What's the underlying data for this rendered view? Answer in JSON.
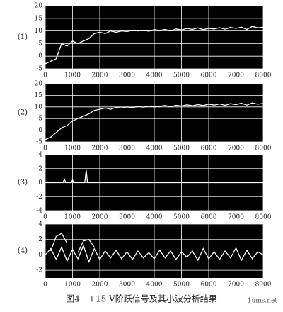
{
  "chart_data": [
    {
      "type": "line",
      "title": "(1)",
      "background": "#000000",
      "grid": true,
      "x": [
        0,
        200,
        400,
        600,
        800,
        1000,
        1200,
        1400,
        1600,
        1800,
        2000,
        2200,
        2400,
        2600,
        2800,
        3000,
        3200,
        3400,
        3600,
        3800,
        4000,
        4200,
        4400,
        4600,
        4800,
        5000,
        5200,
        5400,
        5600,
        5800,
        6000,
        6200,
        6400,
        6600,
        6800,
        7000,
        7200,
        7400,
        7600,
        7800,
        8000
      ],
      "series": [
        {
          "color": "#ffffff",
          "values": [
            -3,
            -2,
            -1,
            5,
            4,
            6,
            5,
            6,
            7,
            9,
            9.5,
            9,
            10,
            9.5,
            10,
            9.8,
            10.2,
            10,
            10.3,
            9.9,
            10.5,
            10.2,
            10.6,
            10,
            10.8,
            10.4,
            11,
            10.6,
            11.2,
            10.5,
            11,
            10.8,
            11.3,
            10.7,
            11.4,
            11,
            11.5,
            10.6,
            11.8,
            11.2,
            11.5
          ]
        }
      ],
      "xlim": [
        0,
        8000
      ],
      "xticks": [
        0,
        1000,
        2000,
        3000,
        4000,
        5000,
        6000,
        7000,
        8000
      ],
      "ylim": [
        -5,
        20
      ],
      "yticks": [
        -5,
        0,
        5,
        10,
        15,
        20
      ]
    },
    {
      "type": "line",
      "title": "(2)",
      "background": "#000000",
      "grid": true,
      "x": [
        0,
        200,
        400,
        600,
        800,
        1000,
        1200,
        1400,
        1600,
        1800,
        2000,
        2200,
        2400,
        2600,
        2800,
        3000,
        3200,
        3400,
        3600,
        3800,
        4000,
        4200,
        4400,
        4600,
        4800,
        5000,
        5200,
        5400,
        5600,
        5800,
        6000,
        6200,
        6400,
        6600,
        6800,
        7000,
        7200,
        7400,
        7600,
        7800,
        8000
      ],
      "series": [
        {
          "color": "#ffffff",
          "values": [
            -4,
            -3,
            -1,
            1,
            2,
            4,
            5,
            6,
            7,
            8.5,
            9,
            9.5,
            9,
            9.8,
            9.5,
            10,
            9.7,
            10.2,
            9.9,
            10.4,
            10,
            10.3,
            10.6,
            10.1,
            10.7,
            10.4,
            10.9,
            10.5,
            11,
            10.6,
            11.2,
            10.8,
            11.3,
            10.7,
            11.4,
            11,
            11.6,
            10.8,
            11.7,
            11.2,
            11.5
          ]
        }
      ],
      "xlim": [
        0,
        8000
      ],
      "xticks": [
        0,
        1000,
        2000,
        3000,
        4000,
        5000,
        6000,
        7000,
        8000
      ],
      "ylim": [
        -5,
        20
      ],
      "yticks": [
        -5,
        0,
        5,
        10,
        15,
        20
      ]
    },
    {
      "type": "line",
      "title": "(3)",
      "background": "#000000",
      "grid": true,
      "x": [
        0,
        650,
        700,
        750,
        950,
        1000,
        1050,
        1450,
        1500,
        1550,
        8000
      ],
      "series": [
        {
          "color": "#ffffff",
          "values": [
            0,
            0,
            0.5,
            0,
            0,
            0.4,
            0,
            0,
            1.8,
            0,
            0
          ]
        }
      ],
      "xlim": [
        0,
        8000
      ],
      "xticks": [
        0,
        1000,
        2000,
        3000,
        4000,
        5000,
        6000,
        7000,
        8000
      ],
      "ylim": [
        -4,
        4
      ],
      "yticks": [
        -4,
        -2,
        0,
        2,
        4
      ]
    },
    {
      "type": "line",
      "title": "(4)",
      "background": "#000000",
      "grid": true,
      "x": [
        0,
        200,
        400,
        600,
        800,
        1000,
        1200,
        1400,
        1600,
        1800,
        2000,
        2200,
        2400,
        2600,
        2800,
        3000,
        3200,
        3400,
        3600,
        3800,
        4000,
        4200,
        4400,
        4600,
        4800,
        5000,
        5200,
        5400,
        5600,
        5800,
        6000,
        6200,
        6400,
        6600,
        6800,
        7000,
        7200,
        7400,
        7600,
        7800,
        8000
      ],
      "series": [
        {
          "color": "#ffffff",
          "values": [
            0,
            0.8,
            -0.6,
            1,
            -0.8,
            0.7,
            -0.5,
            1.2,
            -0.9,
            0.8,
            -0.6,
            0.5,
            -0.4,
            0.6,
            -0.5,
            0.4,
            -0.6,
            0.5,
            -0.4,
            0.3,
            -0.5,
            0.6,
            -0.4,
            0.5,
            -0.6,
            0.4,
            -0.3,
            0.5,
            -0.7,
            0.8,
            -0.5,
            0.4,
            -0.6,
            0.5,
            -0.4,
            0.9,
            -0.7,
            0.6,
            -0.5,
            0.4,
            0
          ]
        },
        {
          "color": "#ffffff",
          "values": [
            null,
            0.5,
            2.4,
            2.8,
            1.5,
            null,
            0.3,
            1.8,
            2,
            1,
            null,
            null,
            null,
            null,
            null,
            null,
            null,
            null,
            null,
            null,
            null,
            null,
            null,
            null,
            null,
            null,
            null,
            null,
            null,
            null,
            null,
            null,
            null,
            null,
            null,
            null,
            null,
            null,
            null,
            null,
            null
          ]
        }
      ],
      "xlim": [
        0,
        8000
      ],
      "xticks": [
        0,
        1000,
        2000,
        3000,
        4000,
        5000,
        6000,
        7000,
        8000
      ],
      "ylim": [
        -3,
        4
      ],
      "yticks": [
        -2,
        0,
        2,
        4
      ]
    }
  ],
  "caption": "图4　+15 V阶跃信号及其小波分析结果",
  "watermark": "1ums.net"
}
